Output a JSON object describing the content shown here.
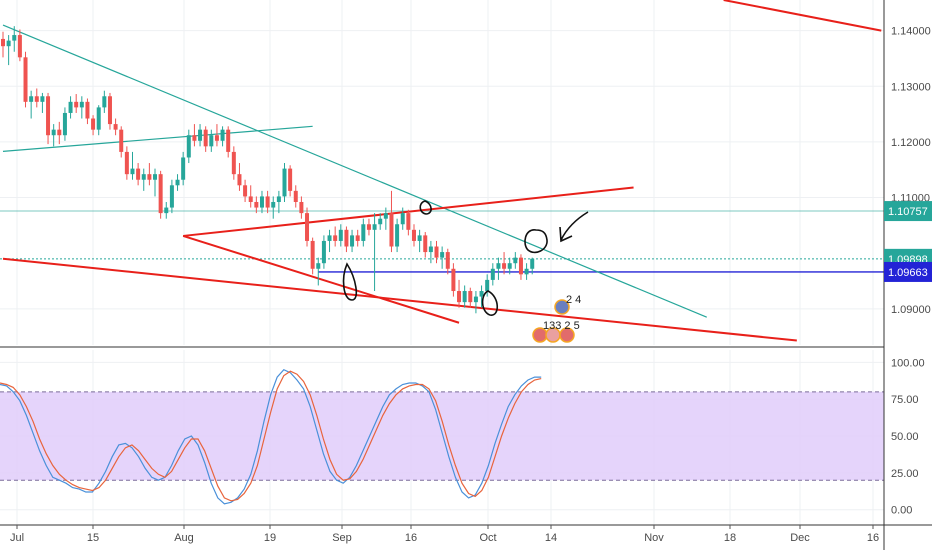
{
  "chart_data": [
    {
      "type": "candlestick",
      "title": "",
      "y_axis_ticks": [
        "1.14000",
        "1.13000",
        "1.12000",
        "1.11000",
        "1.09000"
      ],
      "x_axis_ticks": [
        "Jul",
        "15",
        "Aug",
        "19",
        "Sep",
        "16",
        "Oct",
        "14",
        "Nov",
        "18",
        "Dec",
        "16"
      ],
      "ylim": [
        1.0835,
        1.1455
      ],
      "price_labels": [
        {
          "value": "1.10757",
          "level": 1.10757,
          "color": "#26a69a"
        },
        {
          "value": "1.09898",
          "level": 1.09898,
          "color": "#26a69a"
        },
        {
          "value": "1.09663",
          "level": 1.09663,
          "color": "#2323d6"
        }
      ],
      "candles": [
        [
          0,
          1.1385,
          1.1398,
          1.1352,
          1.1372
        ],
        [
          1,
          1.1372,
          1.1392,
          1.1338,
          1.1382
        ],
        [
          2,
          1.1382,
          1.1408,
          1.1362,
          1.1392
        ],
        [
          3,
          1.1392,
          1.1402,
          1.1345,
          1.1352
        ],
        [
          4,
          1.1352,
          1.1362,
          1.1262,
          1.1272
        ],
        [
          5,
          1.1272,
          1.1292,
          1.1242,
          1.1282
        ],
        [
          6,
          1.1282,
          1.1296,
          1.1262,
          1.1272
        ],
        [
          7,
          1.1272,
          1.1288,
          1.1252,
          1.1282
        ],
        [
          8,
          1.1282,
          1.1288,
          1.1196,
          1.1212
        ],
        [
          9,
          1.1212,
          1.1232,
          1.1192,
          1.1222
        ],
        [
          10,
          1.1222,
          1.1236,
          1.1196,
          1.1212
        ],
        [
          11,
          1.1212,
          1.1262,
          1.1202,
          1.1252
        ],
        [
          12,
          1.1252,
          1.1282,
          1.1242,
          1.1272
        ],
        [
          13,
          1.1272,
          1.1286,
          1.1252,
          1.1262
        ],
        [
          14,
          1.1262,
          1.1282,
          1.1242,
          1.1272
        ],
        [
          15,
          1.1272,
          1.1278,
          1.1232,
          1.1242
        ],
        [
          16,
          1.1242,
          1.1248,
          1.1212,
          1.1222
        ],
        [
          17,
          1.1222,
          1.1266,
          1.1212,
          1.1262
        ],
        [
          18,
          1.1262,
          1.1292,
          1.1252,
          1.1282
        ],
        [
          19,
          1.1282,
          1.1288,
          1.1222,
          1.1232
        ],
        [
          20,
          1.1232,
          1.1242,
          1.1212,
          1.1222
        ],
        [
          21,
          1.1222,
          1.1228,
          1.1172,
          1.1182
        ],
        [
          22,
          1.1182,
          1.1192,
          1.1132,
          1.1142
        ],
        [
          23,
          1.1142,
          1.1182,
          1.1132,
          1.1152
        ],
        [
          24,
          1.1152,
          1.1162,
          1.1122,
          1.1132
        ],
        [
          25,
          1.1132,
          1.1152,
          1.1112,
          1.1142
        ],
        [
          26,
          1.1142,
          1.1162,
          1.1122,
          1.1132
        ],
        [
          27,
          1.1132,
          1.1152,
          1.1102,
          1.1142
        ],
        [
          28,
          1.1142,
          1.1148,
          1.1062,
          1.1072
        ],
        [
          29,
          1.1072,
          1.1092,
          1.1062,
          1.1082
        ],
        [
          30,
          1.1082,
          1.1132,
          1.1072,
          1.1122
        ],
        [
          31,
          1.1122,
          1.1142,
          1.1112,
          1.1132
        ],
        [
          32,
          1.1132,
          1.1182,
          1.1122,
          1.1172
        ],
        [
          33,
          1.1172,
          1.1222,
          1.1162,
          1.1212
        ],
        [
          34,
          1.1212,
          1.1232,
          1.1192,
          1.1202
        ],
        [
          35,
          1.1202,
          1.1232,
          1.1192,
          1.1222
        ],
        [
          36,
          1.1222,
          1.1228,
          1.1182,
          1.1192
        ],
        [
          37,
          1.1192,
          1.1222,
          1.1182,
          1.1212
        ],
        [
          38,
          1.1212,
          1.1232,
          1.1192,
          1.1202
        ],
        [
          39,
          1.1202,
          1.1228,
          1.1192,
          1.1222
        ],
        [
          40,
          1.1222,
          1.1228,
          1.1172,
          1.1182
        ],
        [
          41,
          1.1182,
          1.1192,
          1.1132,
          1.1142
        ],
        [
          42,
          1.1142,
          1.1162,
          1.1112,
          1.1122
        ],
        [
          43,
          1.1122,
          1.1132,
          1.1092,
          1.1102
        ],
        [
          44,
          1.1102,
          1.1122,
          1.1082,
          1.1092
        ],
        [
          45,
          1.1092,
          1.1102,
          1.1072,
          1.1082
        ],
        [
          46,
          1.1082,
          1.1112,
          1.1072,
          1.1102
        ],
        [
          47,
          1.1102,
          1.1112,
          1.1072,
          1.1082
        ],
        [
          48,
          1.1082,
          1.1102,
          1.1062,
          1.1092
        ],
        [
          49,
          1.1092,
          1.1112,
          1.1072,
          1.1102
        ],
        [
          50,
          1.1102,
          1.1162,
          1.1092,
          1.1152
        ],
        [
          51,
          1.1152,
          1.1158,
          1.1102,
          1.1112
        ],
        [
          52,
          1.1112,
          1.1122,
          1.1082,
          1.1092
        ],
        [
          53,
          1.1092,
          1.1102,
          1.1062,
          1.1072
        ],
        [
          54,
          1.1072,
          1.1082,
          1.1012,
          1.1022
        ],
        [
          55,
          1.1022,
          1.1028,
          1.0962,
          1.0972
        ],
        [
          56,
          1.0972,
          1.0992,
          1.0942,
          1.0982
        ],
        [
          57,
          1.0982,
          1.1032,
          1.0972,
          1.1022
        ],
        [
          58,
          1.1022,
          1.1042,
          1.1002,
          1.1032
        ],
        [
          59,
          1.1032,
          1.1048,
          1.1012,
          1.1022
        ],
        [
          60,
          1.1022,
          1.1052,
          1.1012,
          1.1042
        ],
        [
          61,
          1.1042,
          1.1048,
          1.1002,
          1.1012
        ],
        [
          62,
          1.1012,
          1.1042,
          1.1002,
          1.1032
        ],
        [
          63,
          1.1032,
          1.1042,
          1.1012,
          1.1022
        ],
        [
          64,
          1.1022,
          1.1062,
          1.1012,
          1.1052
        ],
        [
          65,
          1.1052,
          1.1062,
          1.1032,
          1.1042
        ],
        [
          66,
          1.1042,
          1.1072,
          1.0932,
          1.1052
        ],
        [
          67,
          1.1052,
          1.1072,
          1.1042,
          1.1062
        ],
        [
          68,
          1.1062,
          1.1082,
          1.1042,
          1.1072
        ],
        [
          69,
          1.1072,
          1.1112,
          1.1002,
          1.1012
        ],
        [
          70,
          1.1012,
          1.1062,
          1.1002,
          1.1052
        ],
        [
          71,
          1.1052,
          1.1082,
          1.1042,
          1.1072
        ],
        [
          72,
          1.1072,
          1.1078,
          1.1032,
          1.1042
        ],
        [
          73,
          1.1042,
          1.1052,
          1.1012,
          1.1022
        ],
        [
          74,
          1.1022,
          1.1042,
          1.1002,
          1.1032
        ],
        [
          75,
          1.1032,
          1.1038,
          1.0992,
          1.1002
        ],
        [
          76,
          1.1002,
          1.1022,
          1.0982,
          1.1012
        ],
        [
          77,
          1.1012,
          1.1022,
          1.0982,
          1.0992
        ],
        [
          78,
          1.0992,
          1.1012,
          1.0972,
          1.1002
        ],
        [
          79,
          1.1002,
          1.1008,
          1.0962,
          1.0972
        ],
        [
          80,
          1.0972,
          1.0982,
          1.0922,
          1.0932
        ],
        [
          81,
          1.0932,
          1.0952,
          1.0902,
          1.0912
        ],
        [
          82,
          1.0912,
          1.0942,
          1.0902,
          1.0932
        ],
        [
          83,
          1.0932,
          1.0938,
          1.0902,
          1.0912
        ],
        [
          84,
          1.0912,
          1.0932,
          1.0892,
          1.0922
        ],
        [
          85,
          1.0922,
          1.0942,
          1.0902,
          1.0932
        ],
        [
          86,
          1.0932,
          1.0962,
          1.0922,
          1.0952
        ],
        [
          87,
          1.0952,
          1.0982,
          1.0942,
          1.0972
        ],
        [
          88,
          1.0972,
          1.0992,
          1.0952,
          1.0982
        ],
        [
          89,
          1.0982,
          1.1002,
          1.0962,
          1.0972
        ],
        [
          90,
          1.0972,
          1.0992,
          1.0962,
          1.0982
        ],
        [
          91,
          1.0982,
          1.1002,
          1.0972,
          1.0992
        ],
        [
          92,
          1.0992,
          1.0998,
          1.0952,
          1.0962
        ],
        [
          93,
          1.0962,
          1.0982,
          1.0952,
          1.0972
        ],
        [
          94,
          1.0972,
          1.0992,
          1.0962,
          1.099
        ]
      ],
      "trendlines_data_units": [
        {
          "from": [
            0,
            1.141
          ],
          "to": [
            125,
            1.0885
          ],
          "color": "#26a69a"
        },
        {
          "from": [
            0,
            1.1183
          ],
          "to": [
            55,
            1.1228
          ],
          "color": "#26a69a"
        },
        {
          "from": [
            32,
            1.1031
          ],
          "to": [
            112,
            1.1118
          ],
          "color": "#e8201a"
        },
        {
          "from": [
            32,
            1.1031
          ],
          "to": [
            81,
            1.0875
          ],
          "color": "#e8201a"
        },
        {
          "from": [
            0,
            1.099
          ],
          "to": [
            141,
            1.0843
          ],
          "color": "#e8201a"
        },
        {
          "from": [
            128,
            1.1455
          ],
          "to": [
            156,
            1.14
          ],
          "color": "#e8201a"
        }
      ],
      "annotations": [
        {
          "type": "badge",
          "text": "2 4"
        },
        {
          "type": "badge",
          "text": "133 2 5"
        }
      ]
    },
    {
      "type": "line",
      "title": "",
      "y_axis_ticks": [
        "100.00",
        "75.00",
        "50.00",
        "25.00",
        "0.00"
      ],
      "ylim": [
        -7,
        105
      ],
      "band": [
        20,
        80
      ],
      "series": [
        {
          "color": "#4a90d9",
          "values": [
            85,
            84,
            80,
            74,
            64,
            52,
            40,
            30,
            22,
            20,
            18,
            15,
            14,
            12,
            12,
            18,
            26,
            36,
            44,
            45,
            42,
            36,
            28,
            22,
            20,
            22,
            30,
            40,
            48,
            50,
            44,
            32,
            18,
            8,
            4,
            5,
            8,
            14,
            24,
            40,
            60,
            78,
            90,
            95,
            93,
            88,
            82,
            70,
            54,
            38,
            26,
            20,
            18,
            22,
            30,
            40,
            50,
            60,
            70,
            78,
            82,
            85,
            86,
            86,
            84,
            80,
            68,
            52,
            36,
            22,
            12,
            8,
            10,
            18,
            30,
            45,
            58,
            70,
            78,
            84,
            88,
            90,
            90
          ]
        },
        {
          "color": "#e8643c",
          "values": [
            86,
            85,
            83,
            78,
            70,
            60,
            48,
            38,
            30,
            24,
            20,
            17,
            15,
            14,
            13,
            15,
            20,
            28,
            36,
            42,
            44,
            40,
            34,
            28,
            24,
            22,
            26,
            34,
            42,
            48,
            48,
            40,
            28,
            16,
            8,
            6,
            7,
            11,
            18,
            30,
            48,
            66,
            82,
            91,
            94,
            92,
            87,
            78,
            64,
            48,
            34,
            24,
            20,
            21,
            26,
            34,
            44,
            54,
            64,
            72,
            78,
            82,
            84,
            85,
            85,
            82,
            74,
            60,
            44,
            30,
            18,
            11,
            9,
            13,
            22,
            36,
            50,
            62,
            72,
            80,
            85,
            88,
            89
          ]
        }
      ]
    }
  ]
}
